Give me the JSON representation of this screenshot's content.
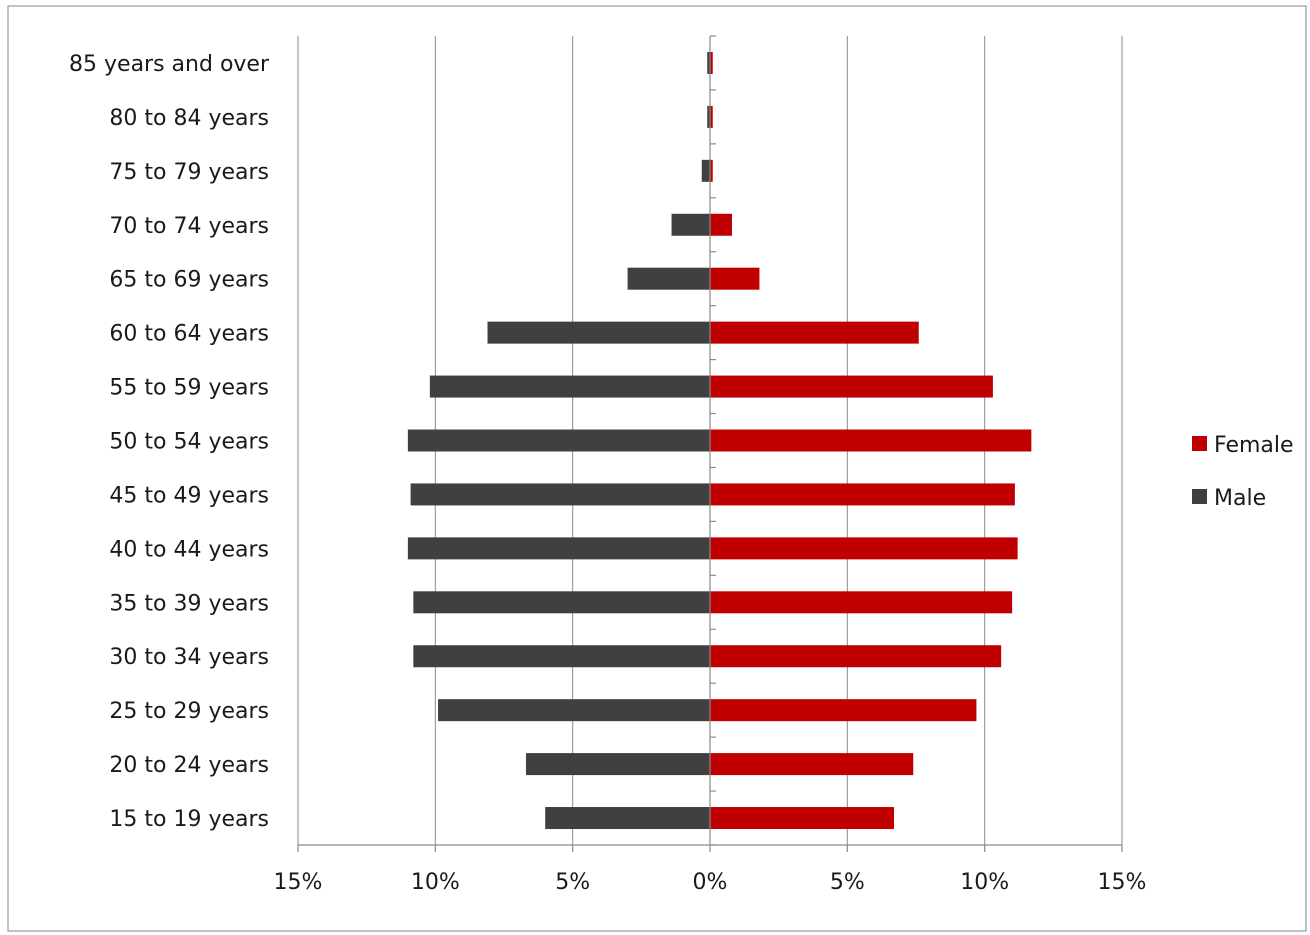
{
  "chart_data": {
    "type": "bar",
    "orientation": "horizontal",
    "subtype": "population-pyramid",
    "title": "",
    "xlabel": "",
    "ylabel": "",
    "xlim": [
      -15,
      15
    ],
    "x_ticks": [
      -15,
      -10,
      -5,
      0,
      5,
      10,
      15
    ],
    "x_tick_labels": [
      "15%",
      "10%",
      "5%",
      "0%",
      "5%",
      "10%",
      "15%"
    ],
    "grid": true,
    "legend_placement": "right",
    "categories": [
      "15 to 19 years",
      "20 to 24 years",
      "25 to 29 years",
      "30 to 34 years",
      "35 to 39 years",
      "40 to 44 years",
      "45 to 49 years",
      "50 to 54 years",
      "55 to 59 years",
      "60 to 64 years",
      "65 to 69 years",
      "70 to 74 years",
      "75 to 79 years",
      "80 to 84 years",
      "85 years and over"
    ],
    "series": [
      {
        "name": "Female",
        "color": "#c00000",
        "values": [
          6.7,
          7.4,
          9.7,
          10.6,
          11.0,
          11.2,
          11.1,
          11.7,
          10.3,
          7.6,
          1.8,
          0.8,
          0.1,
          0.1,
          0.1
        ]
      },
      {
        "name": "Male",
        "color": "#404040",
        "values": [
          -6.0,
          -6.7,
          -9.9,
          -10.8,
          -10.8,
          -11.0,
          -10.9,
          -11.0,
          -10.2,
          -8.1,
          -3.0,
          -1.4,
          -0.3,
          -0.1,
          -0.1
        ]
      }
    ]
  }
}
